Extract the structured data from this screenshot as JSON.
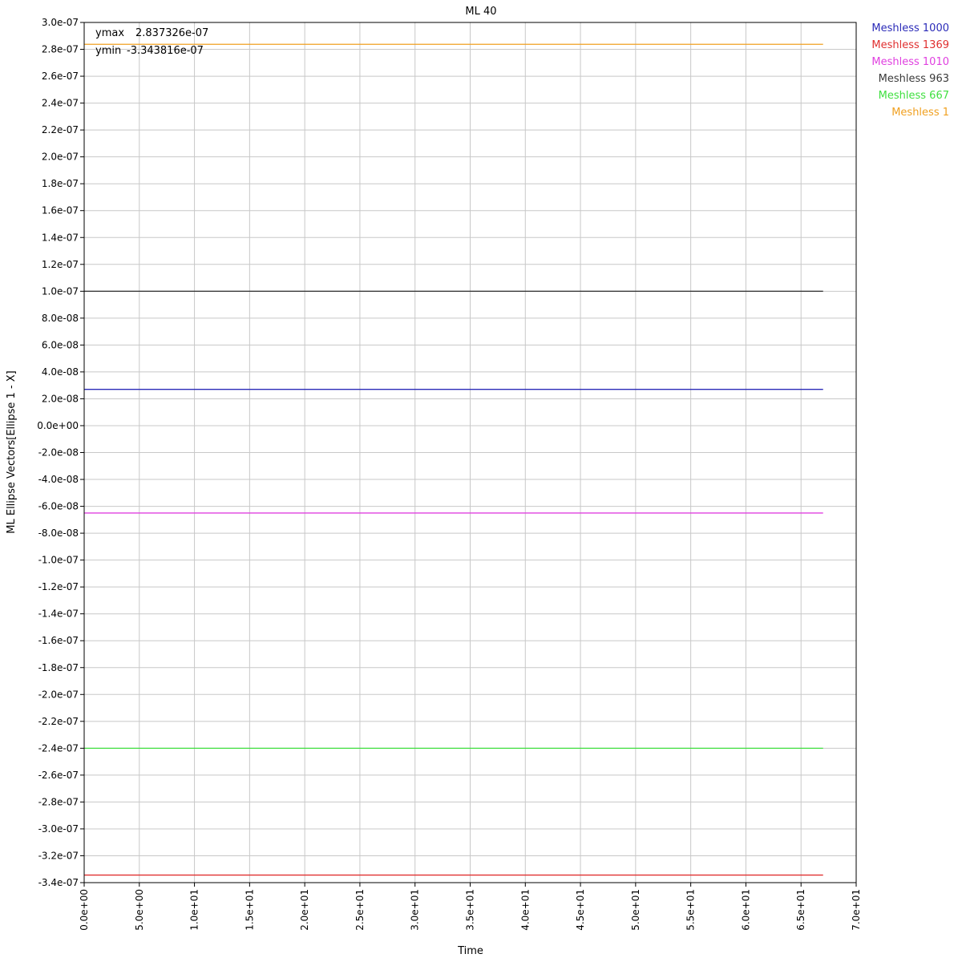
{
  "chart_data": {
    "type": "line",
    "title": "ML 40",
    "xlabel": "Time",
    "ylabel": "ML Ellipse Vectors[Ellipse 1 - X]",
    "xlim": [
      0,
      70
    ],
    "ylim": [
      -3.4e-07,
      3e-07
    ],
    "grid": true,
    "legend_position": "right-outside-top",
    "x_ticks": [
      0,
      5,
      10,
      15,
      20,
      25,
      30,
      35,
      40,
      45,
      50,
      55,
      60,
      65,
      70
    ],
    "x_tick_labels": [
      "0.0e+00",
      "5.0e+00",
      "1.0e+01",
      "1.5e+01",
      "2.0e+01",
      "2.5e+01",
      "3.0e+01",
      "3.5e+01",
      "4.0e+01",
      "4.5e+01",
      "5.0e+01",
      "5.5e+01",
      "6.0e+01",
      "6.5e+01",
      "7.0e+01"
    ],
    "y_ticks": [
      3e-07,
      2.8e-07,
      2.6e-07,
      2.4e-07,
      2.2e-07,
      2e-07,
      1.8e-07,
      1.6e-07,
      1.4e-07,
      1.2e-07,
      1e-07,
      8e-08,
      6e-08,
      4e-08,
      2e-08,
      0,
      -2e-08,
      -4e-08,
      -6e-08,
      -8e-08,
      -1e-07,
      -1.2e-07,
      -1.4e-07,
      -1.6e-07,
      -1.8e-07,
      -2e-07,
      -2.2e-07,
      -2.4e-07,
      -2.6e-07,
      -2.8e-07,
      -3e-07,
      -3.2e-07,
      -3.4e-07
    ],
    "y_tick_labels": [
      "3.0e-07",
      "2.8e-07",
      "2.6e-07",
      "2.4e-07",
      "2.2e-07",
      "2.0e-07",
      "1.8e-07",
      "1.6e-07",
      "1.4e-07",
      "1.2e-07",
      "1.0e-07",
      "8.0e-08",
      "6.0e-08",
      "4.0e-08",
      "2.0e-08",
      "0.0e+00",
      "-2.0e-08",
      "-4.0e-08",
      "-6.0e-08",
      "-8.0e-08",
      "-1.0e-07",
      "-1.2e-07",
      "-1.4e-07",
      "-1.6e-07",
      "-1.8e-07",
      "-2.0e-07",
      "-2.2e-07",
      "-2.4e-07",
      "-2.6e-07",
      "-2.8e-07",
      "-3.0e-07",
      "-3.2e-07",
      "-3.4e-07"
    ],
    "stats": {
      "ymax_label": "ymax",
      "ymax_value": "2.837326e-07",
      "ymin_label": "ymin",
      "ymin_value": "-3.343816e-07"
    },
    "series": [
      {
        "name": "Meshless 1000",
        "color": "#2b2bb8",
        "x": [
          0,
          67
        ],
        "y": [
          2.7e-08,
          2.7e-08
        ]
      },
      {
        "name": "Meshless 1369",
        "color": "#e03030",
        "x": [
          0,
          67
        ],
        "y": [
          -3.343816e-07,
          -3.343816e-07
        ]
      },
      {
        "name": "Meshless 1010",
        "color": "#e040e0",
        "x": [
          0,
          67
        ],
        "y": [
          -6.5e-08,
          -6.5e-08
        ]
      },
      {
        "name": "Meshless 963",
        "color": "#3a3a3a",
        "x": [
          0,
          67
        ],
        "y": [
          1e-07,
          1e-07
        ]
      },
      {
        "name": "Meshless 667",
        "color": "#40e040",
        "x": [
          0,
          67
        ],
        "y": [
          -2.4e-07,
          -2.4e-07
        ]
      },
      {
        "name": "Meshless 1",
        "color": "#f0a020",
        "x": [
          0,
          67
        ],
        "y": [
          2.837326e-07,
          2.837326e-07
        ]
      }
    ]
  }
}
